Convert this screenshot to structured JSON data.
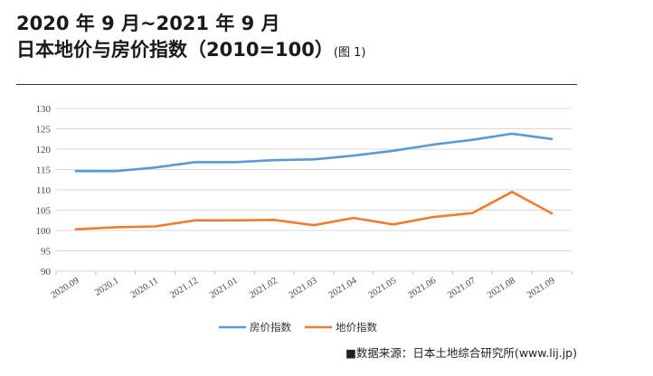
{
  "title": {
    "line1": "2020 年 9 月~2021 年 9 月",
    "line2": "日本地价与房价指数（2010=100）",
    "note": "(图 1)"
  },
  "source": "■数据来源：日本土地综合研究所(www.lij.jp)",
  "chart_data": {
    "type": "line",
    "categories": [
      "2020.09",
      "2020.1",
      "2020.11",
      "2021.12",
      "2021.01",
      "2021.02",
      "2021.03",
      "2021.04",
      "2021.05",
      "2021.06",
      "2021.07",
      "2021.08",
      "2021.09"
    ],
    "series": [
      {
        "name": "房价指数",
        "color": "#5b9bd5",
        "values": [
          114.6,
          114.6,
          115.5,
          116.8,
          116.8,
          117.3,
          117.5,
          118.4,
          119.6,
          121.1,
          122.3,
          123.8,
          122.5
        ]
      },
      {
        "name": "地价指数",
        "color": "#ed7d31",
        "values": [
          100.3,
          100.8,
          101.0,
          102.5,
          102.5,
          102.6,
          101.3,
          103.1,
          101.5,
          103.3,
          104.3,
          109.5,
          104.2
        ]
      }
    ],
    "ylim": [
      90,
      130
    ],
    "yticks": [
      90,
      95,
      100,
      105,
      110,
      115,
      120,
      125,
      130
    ],
    "grid": true,
    "legend": "bottom-center"
  }
}
